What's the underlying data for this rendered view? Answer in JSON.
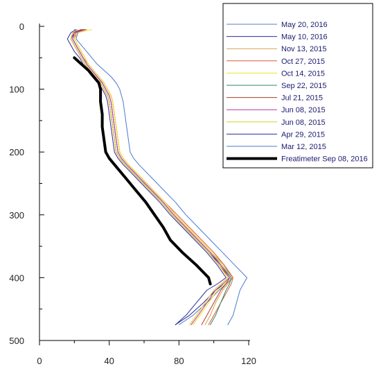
{
  "chart_data": {
    "type": "line",
    "title": "",
    "xlabel": "",
    "ylabel": "",
    "xlim": [
      0,
      120
    ],
    "ylim": [
      500,
      0
    ],
    "x_ticks": [
      0,
      40,
      80,
      120
    ],
    "y_ticks": [
      0,
      100,
      200,
      300,
      400,
      500
    ],
    "x_tick_labels": [
      "0",
      "40",
      "80",
      "120"
    ],
    "y_tick_labels": [
      "0",
      "100",
      "200",
      "300",
      "400",
      "500"
    ],
    "grid": false,
    "legend_position": "top-right",
    "depth": [
      5,
      10,
      20,
      30,
      40,
      50,
      60,
      70,
      80,
      90,
      100,
      110,
      120,
      140,
      160,
      180,
      200,
      210,
      220,
      240,
      260,
      280,
      300,
      320,
      340,
      360,
      380,
      400,
      410,
      420,
      440,
      460,
      475
    ],
    "series": [
      {
        "name": "May 20, 2016",
        "color": "#5a7fc8",
        "width": 1,
        "values": [
          24,
          20,
          19,
          21,
          23,
          25,
          27,
          30,
          33,
          36,
          38,
          40,
          41,
          42,
          43,
          44,
          45,
          47,
          50,
          57,
          64,
          71,
          77,
          84,
          91,
          98,
          105,
          111,
          107,
          103,
          96,
          88,
          80
        ]
      },
      {
        "name": "May 10, 2016",
        "color": "#2a2a9a",
        "width": 1,
        "values": [
          25,
          20,
          18,
          20,
          22,
          24,
          26,
          29,
          32,
          35,
          37,
          39,
          40,
          41,
          42,
          43,
          44,
          46,
          49,
          56,
          63,
          70,
          76,
          83,
          90,
          97,
          104,
          110,
          106,
          101,
          94,
          86,
          78
        ]
      },
      {
        "name": "Nov 13, 2015",
        "color": "#d8a04a",
        "width": 1,
        "values": [
          26,
          21,
          19,
          21,
          23,
          25,
          28,
          31,
          34,
          37,
          39,
          41,
          42,
          43,
          44,
          45,
          46,
          48,
          51,
          58,
          65,
          72,
          78,
          85,
          92,
          99,
          106,
          111,
          108,
          105,
          101,
          98,
          95
        ]
      },
      {
        "name": "Oct 27, 2015",
        "color": "#e0553a",
        "width": 1,
        "values": [
          27,
          21,
          20,
          22,
          24,
          26,
          28,
          31,
          34,
          37,
          39,
          41,
          42,
          43,
          44,
          45,
          46,
          48,
          51,
          58,
          65,
          72,
          79,
          86,
          93,
          100,
          106,
          111,
          110,
          108,
          104,
          100,
          97
        ]
      },
      {
        "name": "Oct 14, 2015",
        "color": "#f0e020",
        "width": 1,
        "values": [
          30,
          22,
          20,
          22,
          24,
          26,
          28,
          31,
          34,
          37,
          39,
          41,
          42,
          43,
          44,
          45,
          46,
          48,
          51,
          58,
          65,
          72,
          78,
          85,
          92,
          99,
          105,
          110,
          106,
          102,
          97,
          92,
          88
        ]
      },
      {
        "name": "Sep 22, 2015",
        "color": "#2a8a6a",
        "width": 1,
        "values": [
          25,
          20,
          19,
          21,
          23,
          25,
          27,
          30,
          33,
          36,
          38,
          40,
          41,
          42,
          43,
          44,
          45,
          47,
          50,
          57,
          64,
          71,
          77,
          84,
          91,
          98,
          104,
          110,
          109,
          107,
          104,
          101,
          98
        ]
      },
      {
        "name": "Jul 21, 2015",
        "color": "#b03a2a",
        "width": 1,
        "values": [
          24,
          19,
          18,
          20,
          22,
          24,
          26,
          29,
          32,
          35,
          37,
          39,
          40,
          41,
          42,
          43,
          44,
          46,
          49,
          56,
          63,
          70,
          76,
          83,
          90,
          97,
          103,
          109,
          107,
          104,
          100,
          96,
          93
        ]
      },
      {
        "name": "Jun 08, 2015",
        "color": "#c030a0",
        "width": 1,
        "values": [
          26,
          20,
          19,
          21,
          23,
          25,
          27,
          30,
          33,
          36,
          38,
          40,
          41,
          42,
          43,
          44,
          45,
          47,
          50,
          57,
          64,
          71,
          77,
          84,
          91,
          98,
          104,
          109,
          105,
          101,
          96,
          91,
          87
        ]
      },
      {
        "name": "Jun 08, 2015",
        "color": "#d8d020",
        "width": 1,
        "values": [
          22,
          19,
          18,
          20,
          22,
          24,
          26,
          29,
          32,
          35,
          37,
          39,
          40,
          41,
          42,
          43,
          44,
          46,
          49,
          56,
          63,
          70,
          76,
          83,
          90,
          97,
          103,
          108,
          104,
          100,
          95,
          90,
          86
        ]
      },
      {
        "name": "Apr 29, 2015",
        "color": "#2a2aa0",
        "width": 1,
        "values": [
          21,
          18,
          16,
          18,
          20,
          23,
          25,
          28,
          31,
          34,
          36,
          38,
          39,
          40,
          41,
          42,
          43,
          45,
          48,
          55,
          62,
          69,
          75,
          82,
          89,
          96,
          102,
          107,
          102,
          96,
          90,
          84,
          78
        ]
      },
      {
        "name": "Mar 12, 2015",
        "color": "#4a78d0",
        "width": 1,
        "values": [
          20,
          22,
          21,
          24,
          27,
          30,
          33,
          37,
          41,
          44,
          46,
          47,
          48,
          49,
          50,
          51,
          52,
          54,
          57,
          64,
          71,
          78,
          84,
          91,
          98,
          105,
          112,
          119,
          117,
          115,
          113,
          111,
          108
        ]
      },
      {
        "name": "Freatimeter Sep 08, 2016",
        "color": "#000000",
        "width": 4,
        "values": [
          null,
          null,
          null,
          null,
          null,
          20,
          24,
          28,
          31,
          34,
          35,
          35,
          35,
          36,
          36,
          37,
          38,
          40,
          43,
          49,
          55,
          61,
          66,
          71,
          75,
          82,
          90,
          97,
          98,
          null,
          null,
          null,
          null
        ]
      }
    ]
  }
}
